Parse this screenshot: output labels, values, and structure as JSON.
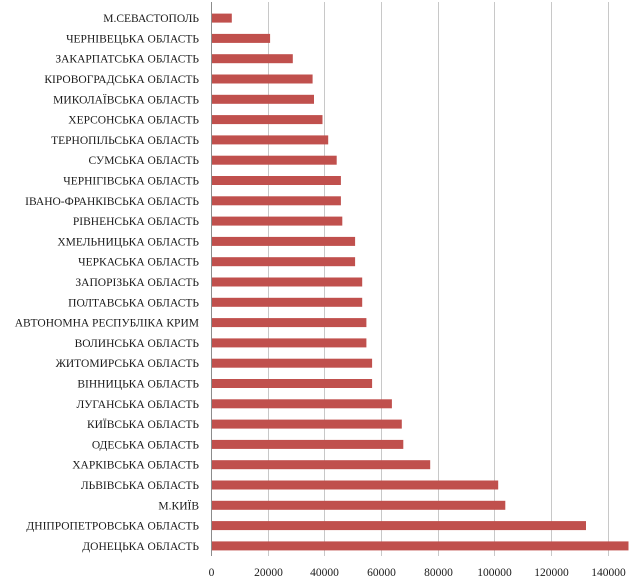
{
  "chart_data": {
    "type": "bar",
    "orientation": "horizontal",
    "title": "",
    "xlabel": "",
    "ylabel": "",
    "xlim": [
      0,
      150000
    ],
    "x_ticks": [
      0,
      20000,
      40000,
      60000,
      80000,
      100000,
      120000,
      140000
    ],
    "x_tick_labels": [
      "0",
      "20000",
      "40000",
      "60000",
      "80000",
      "100000",
      "120000",
      "140000"
    ],
    "grid": "vertical",
    "legend": "none",
    "bar_color": "#c0504d",
    "categories": [
      "М.СЕВАСТОПОЛЬ",
      "ЧЕРНІВЕЦЬКА ОБЛАСТЬ",
      "ЗАКАРПАТСЬКА ОБЛАСТЬ",
      "КІРОВОГРАДСЬКА ОБЛАСТЬ",
      "МИКОЛАЇВСЬКА ОБЛАСТЬ",
      "ХЕРСОНСЬКА ОБЛАСТЬ",
      "ТЕРНОПІЛЬСЬКА ОБЛАСТЬ",
      "СУМСЬКА ОБЛАСТЬ",
      "ЧЕРНІГІВСЬКА ОБЛАСТЬ",
      "ІВАНО-ФРАНКІВСЬКА ОБЛАСТЬ",
      "РІВНЕНСЬКА ОБЛАСТЬ",
      "ХМЕЛЬНИЦЬКА ОБЛАСТЬ",
      "ЧЕРКАСЬКА ОБЛАСТЬ",
      "ЗАПОРІЗЬКА ОБЛАСТЬ",
      "ПОЛТАВСЬКА ОБЛАСТЬ",
      "АВТОНОМНА РЕСПУБЛІКА КРИМ",
      "ВОЛИНСЬКА ОБЛАСТЬ",
      "ЖИТОМИРСЬКА ОБЛАСТЬ",
      "ВІННИЦЬКА ОБЛАСТЬ",
      "ЛУГАНСЬКА ОБЛАСТЬ",
      "КИЇВСЬКА ОБЛАСТЬ",
      "ОДЕСЬКА ОБЛАСТЬ",
      "ХАРКІВСЬКА ОБЛАСТЬ",
      "ЛЬВІВСЬКА ОБЛАСТЬ",
      "М.КИЇВ",
      "ДНІПРОПЕТРОВСЬКА ОБЛАСТЬ",
      "ДОНЕЦЬКА ОБЛАСТЬ"
    ],
    "values": [
      7000,
      20500,
      28500,
      35500,
      36000,
      39000,
      41000,
      44000,
      45500,
      45500,
      46000,
      50500,
      50500,
      53000,
      53000,
      54500,
      54500,
      56500,
      56500,
      63500,
      67000,
      67500,
      77000,
      101000,
      103500,
      132000,
      147000
    ]
  }
}
